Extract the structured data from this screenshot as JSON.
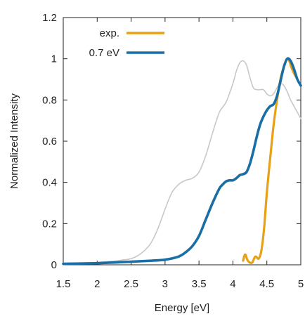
{
  "chart_data": {
    "type": "line",
    "xlabel": "Energy [eV]",
    "ylabel": "Normalized Intensity",
    "xlim": [
      1.5,
      5
    ],
    "ylim": [
      0,
      1.2
    ],
    "x_ticks": [
      "1.5",
      "2",
      "2.5",
      "3",
      "3.5",
      "4",
      "4.5",
      "5"
    ],
    "y_ticks": [
      "0",
      "0.2",
      "0.4",
      "0.6",
      "0.8",
      "1",
      "1.2"
    ],
    "x_tick_values": [
      1.5,
      2,
      2.5,
      3,
      3.5,
      4,
      4.5,
      5
    ],
    "y_tick_values": [
      0,
      0.2,
      0.4,
      0.6,
      0.8,
      1.0,
      1.2
    ],
    "grid": false,
    "legend_position": "top-left",
    "series": [
      {
        "name": "exp.",
        "color": "#e6a117",
        "x": [
          4.15,
          4.18,
          4.22,
          4.28,
          4.33,
          4.38,
          4.42,
          4.46,
          4.5,
          4.55,
          4.6,
          4.65,
          4.7,
          4.75,
          4.8,
          4.83,
          4.86,
          4.9,
          4.95,
          5.0
        ],
        "y": [
          0.02,
          0.05,
          0.02,
          0.01,
          0.04,
          0.03,
          0.07,
          0.18,
          0.35,
          0.52,
          0.68,
          0.8,
          0.9,
          0.96,
          1.0,
          0.99,
          0.96,
          0.93,
          0.9,
          0.87
        ]
      },
      {
        "name": "0.7 eV",
        "color": "#1a6ea6",
        "x": [
          1.5,
          2.0,
          2.5,
          2.8,
          3.0,
          3.2,
          3.3,
          3.4,
          3.5,
          3.6,
          3.7,
          3.8,
          3.85,
          3.9,
          3.95,
          4.0,
          4.05,
          4.1,
          4.15,
          4.2,
          4.25,
          4.3,
          4.35,
          4.4,
          4.45,
          4.5,
          4.55,
          4.6,
          4.65,
          4.7,
          4.75,
          4.8,
          4.85,
          4.9,
          4.95,
          5.0
        ],
        "y": [
          0.005,
          0.008,
          0.015,
          0.02,
          0.025,
          0.04,
          0.06,
          0.09,
          0.14,
          0.22,
          0.3,
          0.37,
          0.39,
          0.405,
          0.41,
          0.41,
          0.42,
          0.435,
          0.44,
          0.45,
          0.49,
          0.55,
          0.62,
          0.68,
          0.72,
          0.75,
          0.77,
          0.78,
          0.82,
          0.89,
          0.96,
          1.0,
          0.99,
          0.95,
          0.9,
          0.87
        ]
      },
      {
        "color": "#c8c8c8",
        "x": [
          1.5,
          2.0,
          2.3,
          2.5,
          2.6,
          2.7,
          2.8,
          2.9,
          3.0,
          3.1,
          3.2,
          3.3,
          3.4,
          3.5,
          3.6,
          3.7,
          3.8,
          3.9,
          4.0,
          4.05,
          4.1,
          4.15,
          4.2,
          4.25,
          4.3,
          4.35,
          4.4,
          4.45,
          4.5,
          4.55,
          4.6,
          4.65,
          4.7,
          4.75,
          4.8,
          4.85,
          4.9,
          4.95,
          5.0
        ],
        "y": [
          0.005,
          0.012,
          0.02,
          0.03,
          0.045,
          0.07,
          0.11,
          0.18,
          0.27,
          0.35,
          0.39,
          0.41,
          0.42,
          0.45,
          0.53,
          0.64,
          0.74,
          0.79,
          0.88,
          0.94,
          0.98,
          0.99,
          0.97,
          0.91,
          0.86,
          0.85,
          0.85,
          0.85,
          0.83,
          0.82,
          0.83,
          0.86,
          0.88,
          0.87,
          0.84,
          0.8,
          0.77,
          0.74,
          0.71
        ]
      }
    ]
  }
}
